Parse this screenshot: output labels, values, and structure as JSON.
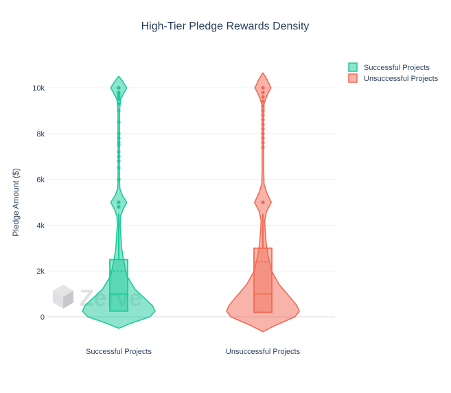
{
  "title": "High-Tier Pledge Rewards Density",
  "watermark": "Zerve",
  "chart_data": {
    "type": "violin",
    "title": "High-Tier Pledge Rewards Density",
    "xlabel": "",
    "ylabel": "Pledge Amount ($)",
    "ylim": [
      -700,
      10700
    ],
    "yticks": [
      0,
      2000,
      4000,
      6000,
      8000,
      10000
    ],
    "ytick_labels": [
      "0",
      "2k",
      "4k",
      "6k",
      "8k",
      "10k"
    ],
    "grid": true,
    "legend_position": "top-right",
    "categories": [
      "Successful Projects",
      "Unsuccessful Projects"
    ],
    "series": [
      {
        "name": "Successful Projects",
        "category": "Successful Projects",
        "color": "#1dc99a",
        "box": {
          "q1": 250,
          "median": 1000,
          "q3": 2500,
          "mean": 2000,
          "lower_fence": 250,
          "upper_fence": 4500
        },
        "outliers": [
          4800,
          5000,
          5000,
          5000,
          6000,
          6000,
          6500,
          6800,
          7000,
          7200,
          7500,
          7600,
          7800,
          8000,
          8000,
          8500,
          9000,
          9300,
          9500,
          9600,
          9700,
          9800,
          10000,
          10000
        ],
        "density": [
          [
            -500,
            0.0
          ],
          [
            -300,
            0.3
          ],
          [
            0,
            0.85
          ],
          [
            250,
            1.0
          ],
          [
            500,
            0.92
          ],
          [
            800,
            0.72
          ],
          [
            1200,
            0.45
          ],
          [
            1800,
            0.22
          ],
          [
            2500,
            0.13
          ],
          [
            3000,
            0.08
          ],
          [
            3500,
            0.06
          ],
          [
            4000,
            0.04
          ],
          [
            4400,
            0.05
          ],
          [
            4700,
            0.12
          ],
          [
            5000,
            0.22
          ],
          [
            5300,
            0.1
          ],
          [
            5600,
            0.03
          ],
          [
            6000,
            0.02
          ],
          [
            7000,
            0.015
          ],
          [
            8000,
            0.02
          ],
          [
            9000,
            0.02
          ],
          [
            9500,
            0.05
          ],
          [
            9800,
            0.15
          ],
          [
            10000,
            0.22
          ],
          [
            10300,
            0.1
          ],
          [
            10500,
            0.0
          ]
        ]
      },
      {
        "name": "Unsuccessful Projects",
        "category": "Unsuccessful Projects",
        "color": "#f26a55",
        "box": {
          "q1": 200,
          "median": 1000,
          "q3": 3000,
          "mean": 2400,
          "lower_fence": 200,
          "upper_fence": 4500
        },
        "outliers": [
          5000,
          5000,
          7400,
          7600,
          7800,
          8000,
          8200,
          8400,
          8600,
          8800,
          9000,
          9200,
          9400,
          9600,
          9800,
          10000,
          10000
        ],
        "density": [
          [
            -650,
            0.0
          ],
          [
            -400,
            0.3
          ],
          [
            0,
            0.88
          ],
          [
            250,
            1.0
          ],
          [
            500,
            0.93
          ],
          [
            900,
            0.72
          ],
          [
            1400,
            0.45
          ],
          [
            2000,
            0.24
          ],
          [
            2700,
            0.14
          ],
          [
            3200,
            0.09
          ],
          [
            3800,
            0.06
          ],
          [
            4200,
            0.05
          ],
          [
            4600,
            0.1
          ],
          [
            5000,
            0.23
          ],
          [
            5400,
            0.11
          ],
          [
            5800,
            0.03
          ],
          [
            6500,
            0.02
          ],
          [
            7500,
            0.02
          ],
          [
            8500,
            0.02
          ],
          [
            9300,
            0.03
          ],
          [
            9700,
            0.12
          ],
          [
            10000,
            0.22
          ],
          [
            10400,
            0.1
          ],
          [
            10650,
            0.0
          ]
        ]
      }
    ]
  }
}
